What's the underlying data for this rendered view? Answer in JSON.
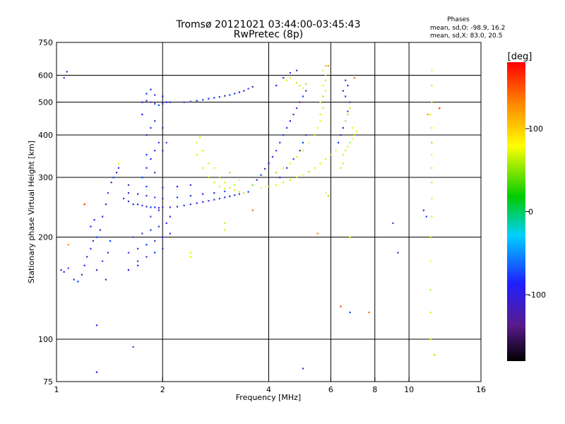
{
  "chart_data": {
    "type": "scatter",
    "title": "Tromsø 20121021 03:44:00-03:45:43",
    "subtitle": "RwPretec (8p)",
    "xlabel": "Frequency [MHz]",
    "ylabel": "Stationary phase Virtual Height [km]",
    "x_scale": "log",
    "y_scale": "log",
    "xlim": [
      1,
      16
    ],
    "ylim": [
      75,
      750
    ],
    "x_ticks": [
      1,
      2,
      4,
      6,
      8,
      10,
      16
    ],
    "y_ticks": [
      75,
      100,
      200,
      300,
      400,
      500,
      600,
      750
    ],
    "x_grid": [
      2,
      4,
      6,
      8,
      10
    ],
    "y_grid": [
      100,
      200,
      300,
      400,
      500,
      600
    ],
    "grid": true,
    "stats": {
      "heading": "Phases",
      "line1": "mean, sd,O: -98.9, 16.2",
      "line2": "mean, sd,X: 83.0, 20.5"
    },
    "colorbar": {
      "label": "[deg]",
      "range": [
        -180,
        180
      ],
      "ticks": [
        100,
        0,
        -100
      ],
      "colors": [
        "#000000",
        "#5a1a8c",
        "#1f1fff",
        "#00d0ff",
        "#00cc00",
        "#ffff00",
        "#ff8800",
        "#ff0000"
      ]
    },
    "series": [
      {
        "color_group": "O-mode (blue/purple, phase ≈ -100°)",
        "points": [
          [
            1.03,
            160
          ],
          [
            1.05,
            158
          ],
          [
            1.08,
            162
          ],
          [
            1.12,
            150
          ],
          [
            1.15,
            148
          ],
          [
            1.18,
            155
          ],
          [
            1.2,
            165
          ],
          [
            1.22,
            175
          ],
          [
            1.25,
            185
          ],
          [
            1.27,
            195
          ],
          [
            1.3,
            200
          ],
          [
            1.33,
            210
          ],
          [
            1.35,
            230
          ],
          [
            1.38,
            250
          ],
          [
            1.4,
            270
          ],
          [
            1.43,
            290
          ],
          [
            1.45,
            300
          ],
          [
            1.48,
            310
          ],
          [
            1.5,
            320
          ],
          [
            1.3,
            160
          ],
          [
            1.35,
            170
          ],
          [
            1.4,
            180
          ],
          [
            1.42,
            195
          ],
          [
            1.38,
            150
          ],
          [
            1.25,
            215
          ],
          [
            1.28,
            225
          ],
          [
            1.05,
            590
          ],
          [
            1.07,
            615
          ],
          [
            1.55,
            260
          ],
          [
            1.6,
            255
          ],
          [
            1.65,
            250
          ],
          [
            1.7,
            250
          ],
          [
            1.75,
            248
          ],
          [
            1.8,
            246
          ],
          [
            1.85,
            245
          ],
          [
            1.9,
            245
          ],
          [
            1.95,
            244
          ],
          [
            2.0,
            245
          ],
          [
            2.1,
            245
          ],
          [
            2.2,
            246
          ],
          [
            2.3,
            248
          ],
          [
            2.4,
            250
          ],
          [
            2.5,
            252
          ],
          [
            2.6,
            254
          ],
          [
            2.7,
            256
          ],
          [
            2.8,
            258
          ],
          [
            2.9,
            260
          ],
          [
            3.0,
            262
          ],
          [
            3.1,
            264
          ],
          [
            3.2,
            266
          ],
          [
            3.3,
            268
          ],
          [
            3.4,
            270
          ],
          [
            3.5,
            272
          ],
          [
            1.6,
            270
          ],
          [
            1.7,
            268
          ],
          [
            1.8,
            265
          ],
          [
            1.9,
            262
          ],
          [
            2.0,
            260
          ],
          [
            2.2,
            262
          ],
          [
            2.4,
            265
          ],
          [
            2.6,
            268
          ],
          [
            2.8,
            270
          ],
          [
            3.0,
            273
          ],
          [
            1.6,
            285
          ],
          [
            1.8,
            282
          ],
          [
            2.0,
            280
          ],
          [
            2.2,
            282
          ],
          [
            2.4,
            285
          ],
          [
            1.6,
            180
          ],
          [
            1.7,
            185
          ],
          [
            1.8,
            190
          ],
          [
            1.9,
            195
          ],
          [
            2.0,
            200
          ],
          [
            2.1,
            205
          ],
          [
            1.65,
            200
          ],
          [
            1.75,
            205
          ],
          [
            1.85,
            210
          ],
          [
            1.95,
            215
          ],
          [
            2.05,
            220
          ],
          [
            2.1,
            230
          ],
          [
            1.7,
            170
          ],
          [
            1.8,
            175
          ],
          [
            1.9,
            180
          ],
          [
            2.0,
            185
          ],
          [
            1.6,
            160
          ],
          [
            1.7,
            165
          ],
          [
            1.85,
            230
          ],
          [
            1.95,
            240
          ],
          [
            1.75,
            300
          ],
          [
            1.8,
            320
          ],
          [
            1.85,
            340
          ],
          [
            1.9,
            360
          ],
          [
            1.95,
            380
          ],
          [
            1.8,
            400
          ],
          [
            1.85,
            420
          ],
          [
            1.9,
            440
          ],
          [
            1.75,
            460
          ],
          [
            2.0,
            360
          ],
          [
            2.05,
            380
          ],
          [
            2.0,
            420
          ],
          [
            1.8,
            350
          ],
          [
            1.9,
            310
          ],
          [
            1.75,
            500
          ],
          [
            1.8,
            505
          ],
          [
            1.85,
            500
          ],
          [
            1.9,
            495
          ],
          [
            1.95,
            490
          ],
          [
            2.0,
            495
          ],
          [
            2.05,
            500
          ],
          [
            2.1,
            500
          ],
          [
            2.3,
            500
          ],
          [
            2.4,
            502
          ],
          [
            2.5,
            505
          ],
          [
            2.6,
            508
          ],
          [
            2.7,
            512
          ],
          [
            2.8,
            515
          ],
          [
            2.9,
            518
          ],
          [
            3.0,
            522
          ],
          [
            3.1,
            525
          ],
          [
            3.2,
            530
          ],
          [
            3.3,
            535
          ],
          [
            3.4,
            540
          ],
          [
            3.5,
            548
          ],
          [
            3.6,
            555
          ],
          [
            1.8,
            530
          ],
          [
            1.9,
            525
          ],
          [
            2.0,
            520
          ],
          [
            1.85,
            545
          ],
          [
            3.6,
            285
          ],
          [
            3.7,
            295
          ],
          [
            3.8,
            305
          ],
          [
            3.9,
            318
          ],
          [
            4.0,
            330
          ],
          [
            4.1,
            345
          ],
          [
            4.2,
            360
          ],
          [
            4.3,
            380
          ],
          [
            4.4,
            400
          ],
          [
            4.5,
            420
          ],
          [
            4.6,
            440
          ],
          [
            4.7,
            460
          ],
          [
            4.8,
            480
          ],
          [
            4.9,
            500
          ],
          [
            5.0,
            520
          ],
          [
            5.1,
            540
          ],
          [
            4.3,
            300
          ],
          [
            4.5,
            320
          ],
          [
            4.7,
            340
          ],
          [
            4.9,
            360
          ],
          [
            5.0,
            380
          ],
          [
            5.1,
            400
          ],
          [
            4.2,
            560
          ],
          [
            4.4,
            590
          ],
          [
            4.6,
            610
          ],
          [
            4.8,
            620
          ],
          [
            6.3,
            380
          ],
          [
            6.4,
            400
          ],
          [
            6.5,
            420
          ],
          [
            6.6,
            440
          ],
          [
            6.7,
            470
          ],
          [
            6.8,
            500
          ],
          [
            6.6,
            520
          ],
          [
            6.5,
            540
          ],
          [
            6.7,
            560
          ],
          [
            6.6,
            580
          ],
          [
            9.0,
            220
          ],
          [
            9.3,
            180
          ],
          [
            6.8,
            120
          ],
          [
            5.0,
            82
          ],
          [
            1.3,
            80
          ],
          [
            1.3,
            110
          ],
          [
            1.65,
            95
          ],
          [
            11.0,
            240
          ],
          [
            11.2,
            230
          ]
        ]
      },
      {
        "color_group": "X-mode (yellow/green, phase ≈ +80°)",
        "points": [
          [
            2.5,
            350
          ],
          [
            2.6,
            360
          ],
          [
            2.7,
            330
          ],
          [
            2.8,
            320
          ],
          [
            2.9,
            300
          ],
          [
            3.0,
            290
          ],
          [
            3.1,
            280
          ],
          [
            3.2,
            275
          ],
          [
            3.3,
            272
          ],
          [
            3.4,
            270
          ],
          [
            2.7,
            300
          ],
          [
            2.8,
            290
          ],
          [
            2.9,
            282
          ],
          [
            3.0,
            278
          ],
          [
            3.2,
            285
          ],
          [
            3.3,
            295
          ],
          [
            3.1,
            310
          ],
          [
            2.6,
            320
          ],
          [
            2.5,
            380
          ],
          [
            2.55,
            395
          ],
          [
            3.6,
            285
          ],
          [
            3.8,
            280
          ],
          [
            4.0,
            282
          ],
          [
            4.2,
            285
          ],
          [
            4.4,
            290
          ],
          [
            4.6,
            295
          ],
          [
            4.8,
            300
          ],
          [
            5.0,
            305
          ],
          [
            5.2,
            312
          ],
          [
            5.4,
            320
          ],
          [
            5.6,
            330
          ],
          [
            5.8,
            340
          ],
          [
            6.0,
            350
          ],
          [
            6.2,
            360
          ],
          [
            4.2,
            310
          ],
          [
            4.4,
            320
          ],
          [
            4.6,
            330
          ],
          [
            4.8,
            345
          ],
          [
            5.0,
            360
          ],
          [
            5.2,
            380
          ],
          [
            5.4,
            400
          ],
          [
            5.5,
            420
          ],
          [
            5.6,
            440
          ],
          [
            5.6,
            460
          ],
          [
            5.7,
            480
          ],
          [
            5.6,
            500
          ],
          [
            5.7,
            520
          ],
          [
            5.8,
            540
          ],
          [
            5.7,
            560
          ],
          [
            5.8,
            580
          ],
          [
            5.8,
            600
          ],
          [
            5.7,
            620
          ],
          [
            5.8,
            640
          ],
          [
            4.5,
            580
          ],
          [
            4.6,
            590
          ],
          [
            4.8,
            570
          ],
          [
            4.9,
            560
          ],
          [
            5.0,
            550
          ],
          [
            5.1,
            565
          ],
          [
            6.5,
            350
          ],
          [
            6.6,
            360
          ],
          [
            6.7,
            370
          ],
          [
            6.8,
            380
          ],
          [
            6.9,
            390
          ],
          [
            7.0,
            400
          ],
          [
            7.1,
            410
          ],
          [
            6.9,
            420
          ],
          [
            6.5,
            330
          ],
          [
            6.4,
            320
          ],
          [
            6.6,
            440
          ],
          [
            6.7,
            460
          ],
          [
            6.8,
            480
          ],
          [
            11.5,
            100
          ],
          [
            11.5,
            120
          ],
          [
            11.5,
            140
          ],
          [
            11.5,
            170
          ],
          [
            11.5,
            200
          ],
          [
            11.6,
            230
          ],
          [
            11.6,
            260
          ],
          [
            11.6,
            290
          ],
          [
            11.6,
            320
          ],
          [
            11.6,
            350
          ],
          [
            11.6,
            380
          ],
          [
            11.6,
            420
          ],
          [
            11.5,
            460
          ],
          [
            11.6,
            500
          ],
          [
            11.6,
            560
          ],
          [
            11.6,
            620
          ],
          [
            11.8,
            90
          ],
          [
            2.4,
            180
          ],
          [
            2.4,
            175
          ],
          [
            3.0,
            210
          ],
          [
            3.0,
            220
          ],
          [
            5.8,
            270
          ],
          [
            5.9,
            265
          ],
          [
            6.8,
            200
          ],
          [
            1.5,
            330
          ],
          [
            1.2,
            250
          ]
        ]
      },
      {
        "color_group": "orange/red scattered",
        "points": [
          [
            1.08,
            190
          ],
          [
            1.2,
            250
          ],
          [
            3.6,
            240
          ],
          [
            5.5,
            205
          ],
          [
            6.4,
            125
          ],
          [
            7.7,
            120
          ],
          [
            11.3,
            460
          ],
          [
            12.2,
            480
          ],
          [
            7.0,
            590
          ],
          [
            5.9,
            640
          ]
        ]
      }
    ]
  }
}
